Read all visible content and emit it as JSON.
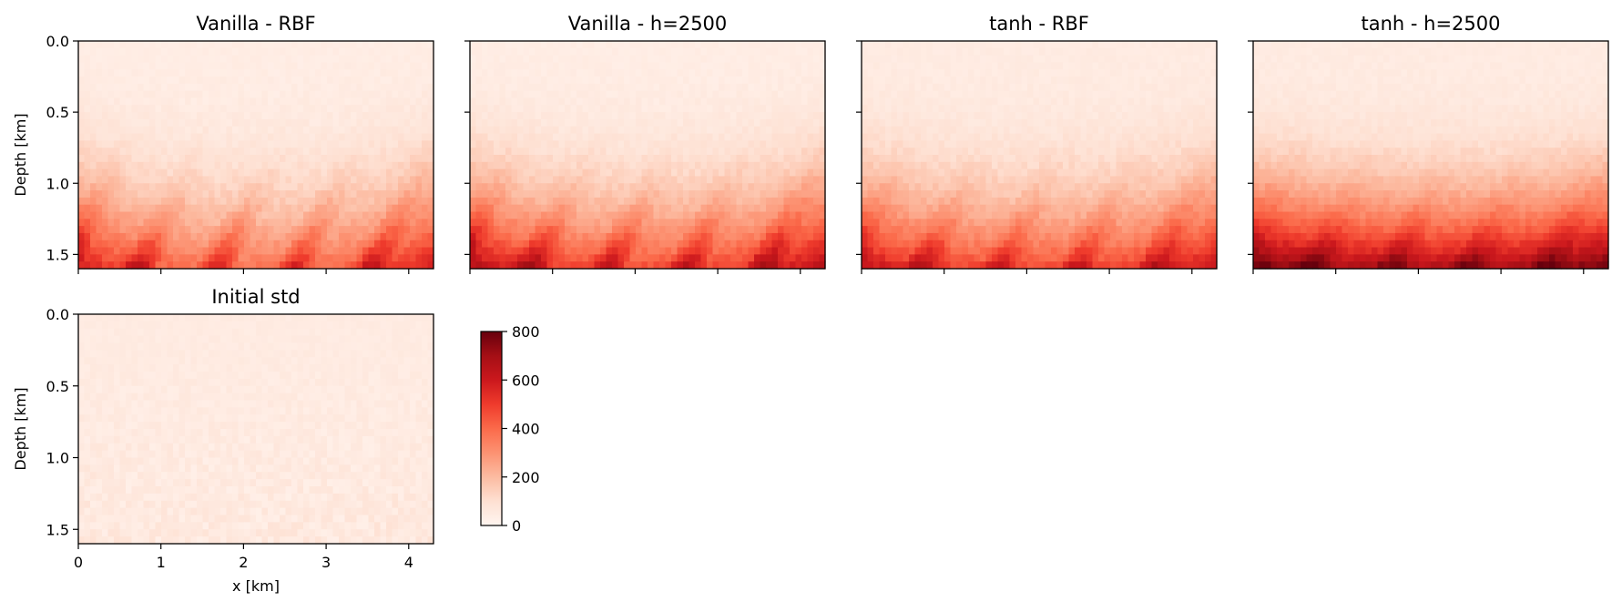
{
  "chart_data": {
    "type": "heatmap",
    "colormap": "Reds",
    "colorbar": {
      "ticks": [
        0,
        200,
        400,
        600,
        800
      ],
      "range": [
        0,
        800
      ]
    },
    "panels": [
      {
        "title": "Vanilla - RBF",
        "ylabel": "Depth [km]",
        "xlabel": "",
        "show_xticklabels": false,
        "show_yticklabels": true,
        "xlim": [
          0,
          4.3
        ],
        "ylim": [
          1.6,
          0.0
        ],
        "xticks": [
          0,
          1,
          2,
          3,
          4
        ],
        "yticks": [
          0.0,
          0.5,
          1.0,
          1.5
        ],
        "intensity_profile": {
          "shallow": 0.05,
          "deep": 0.45,
          "peak": 0.75
        }
      },
      {
        "title": "Vanilla - h=2500",
        "ylabel": "",
        "xlabel": "",
        "show_xticklabels": false,
        "show_yticklabels": false,
        "xlim": [
          0,
          4.3
        ],
        "ylim": [
          1.6,
          0.0
        ],
        "xticks": [
          0,
          1,
          2,
          3,
          4
        ],
        "yticks": [
          0.0,
          0.5,
          1.0,
          1.5
        ],
        "intensity_profile": {
          "shallow": 0.05,
          "deep": 0.55,
          "peak": 0.85
        }
      },
      {
        "title": "tanh - RBF",
        "ylabel": "",
        "xlabel": "",
        "show_xticklabels": false,
        "show_yticklabels": false,
        "xlim": [
          0,
          4.3
        ],
        "ylim": [
          1.6,
          0.0
        ],
        "xticks": [
          0,
          1,
          2,
          3,
          4
        ],
        "yticks": [
          0.0,
          0.5,
          1.0,
          1.5
        ],
        "intensity_profile": {
          "shallow": 0.06,
          "deep": 0.55,
          "peak": 0.8
        }
      },
      {
        "title": "tanh - h=2500",
        "ylabel": "",
        "xlabel": "",
        "show_xticklabels": false,
        "show_yticklabels": false,
        "xlim": [
          0,
          4.3
        ],
        "ylim": [
          1.6,
          0.0
        ],
        "xticks": [
          0,
          1,
          2,
          3,
          4
        ],
        "yticks": [
          0.0,
          0.5,
          1.0,
          1.5
        ],
        "intensity_profile": {
          "shallow": 0.06,
          "deep": 0.8,
          "peak": 1.0
        }
      },
      {
        "title": "Initial std",
        "ylabel": "Depth [km]",
        "xlabel": "x [km]",
        "show_xticklabels": true,
        "show_yticklabels": true,
        "xlim": [
          0,
          4.3
        ],
        "ylim": [
          1.6,
          0.0
        ],
        "xticks": [
          0,
          1,
          2,
          3,
          4
        ],
        "yticks": [
          0.0,
          0.5,
          1.0,
          1.5
        ],
        "intensity_profile": {
          "shallow": 0.06,
          "deep": 0.07,
          "peak": 0.08
        }
      }
    ]
  }
}
